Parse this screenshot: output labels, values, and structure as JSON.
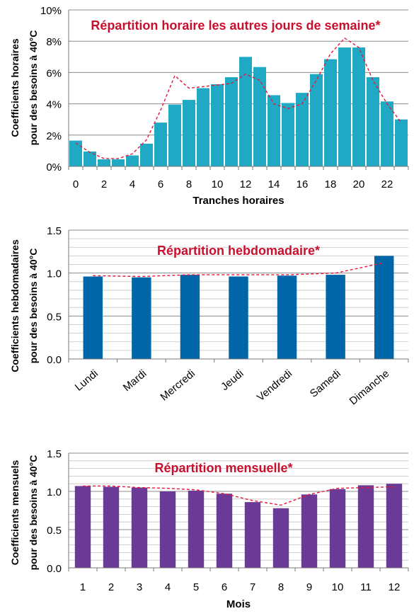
{
  "chart_data": [
    {
      "type": "bar",
      "title": "Répartition horaire les autres jours de semaine*",
      "xlabel": "Tranches horaires",
      "ylabel": [
        "Coefficients horaires",
        "pour des besoins à 40°C"
      ],
      "ylim": [
        0,
        10
      ],
      "y_ticks": [
        "0%",
        "2%",
        "4%",
        "6%",
        "8%",
        "10%"
      ],
      "x_tick_labels": [
        "0",
        "2",
        "4",
        "6",
        "8",
        "10",
        "12",
        "14",
        "16",
        "18",
        "20",
        "22"
      ],
      "categories": [
        "0",
        "1",
        "2",
        "3",
        "4",
        "5",
        "6",
        "7",
        "8",
        "9",
        "10",
        "11",
        "12",
        "13",
        "14",
        "15",
        "16",
        "17",
        "18",
        "19",
        "20",
        "21",
        "22",
        "23"
      ],
      "series": [
        {
          "values": [
            1.65,
            0.95,
            0.45,
            0.45,
            0.7,
            1.45,
            2.8,
            3.95,
            4.25,
            5.0,
            5.25,
            5.7,
            7.0,
            6.35,
            4.55,
            4.05,
            4.7,
            5.9,
            6.85,
            7.6,
            7.6,
            5.7,
            4.15,
            3.0
          ]
        },
        {
          "type": "line",
          "values": [
            1.5,
            0.9,
            0.5,
            0.5,
            0.8,
            1.7,
            3.6,
            5.8,
            5.0,
            5.1,
            5.2,
            5.3,
            5.9,
            5.5,
            4.0,
            3.7,
            4.0,
            5.5,
            7.2,
            8.2,
            7.6,
            5.5,
            4.0,
            2.8
          ]
        }
      ],
      "colors": {
        "bar": "#1fa9c5",
        "line": "#e8163c",
        "title": "#c8102e"
      },
      "grid": true
    },
    {
      "type": "bar",
      "title": "Répartition hebdomadaire*",
      "xlabel": "",
      "ylabel": [
        "Coefficients hebdomadaires",
        "pour des besoins à 40°C"
      ],
      "ylim": [
        0,
        1.5
      ],
      "y_ticks": [
        "0.0",
        "0.5",
        "1.0",
        "1.5"
      ],
      "categories": [
        "Lundi",
        "Mardi",
        "Mercredi",
        "Jeudi",
        "Vendredi",
        "Samedi",
        "Dimanche"
      ],
      "series": [
        {
          "values": [
            0.96,
            0.95,
            0.98,
            0.96,
            0.97,
            0.98,
            1.2
          ]
        },
        {
          "type": "line",
          "values": [
            0.97,
            0.96,
            0.98,
            0.98,
            0.98,
            1.0,
            1.12
          ]
        }
      ],
      "colors": {
        "bar": "#0066a8",
        "line": "#e8163c",
        "title": "#c8102e"
      },
      "grid": true
    },
    {
      "type": "bar",
      "title": "Répartition mensuelle*",
      "xlabel": "Mois",
      "ylabel": [
        "Coefficients mensuels",
        "pour des besoins à 40°C"
      ],
      "ylim": [
        0,
        1.5
      ],
      "y_ticks": [
        "0.0",
        "0.5",
        "1.0",
        "1.5"
      ],
      "categories": [
        "1",
        "2",
        "3",
        "4",
        "5",
        "6",
        "7",
        "8",
        "9",
        "10",
        "11",
        "12"
      ],
      "series": [
        {
          "values": [
            1.07,
            1.06,
            1.05,
            1.0,
            1.01,
            0.97,
            0.86,
            0.78,
            0.96,
            1.03,
            1.08,
            1.1
          ]
        },
        {
          "type": "line",
          "values": [
            1.07,
            1.07,
            1.05,
            1.04,
            1.02,
            0.97,
            0.88,
            0.82,
            0.96,
            1.04,
            1.05,
            1.06
          ]
        }
      ],
      "colors": {
        "bar": "#6a3a96",
        "line": "#e8163c",
        "title": "#c8102e"
      },
      "grid": true
    }
  ]
}
